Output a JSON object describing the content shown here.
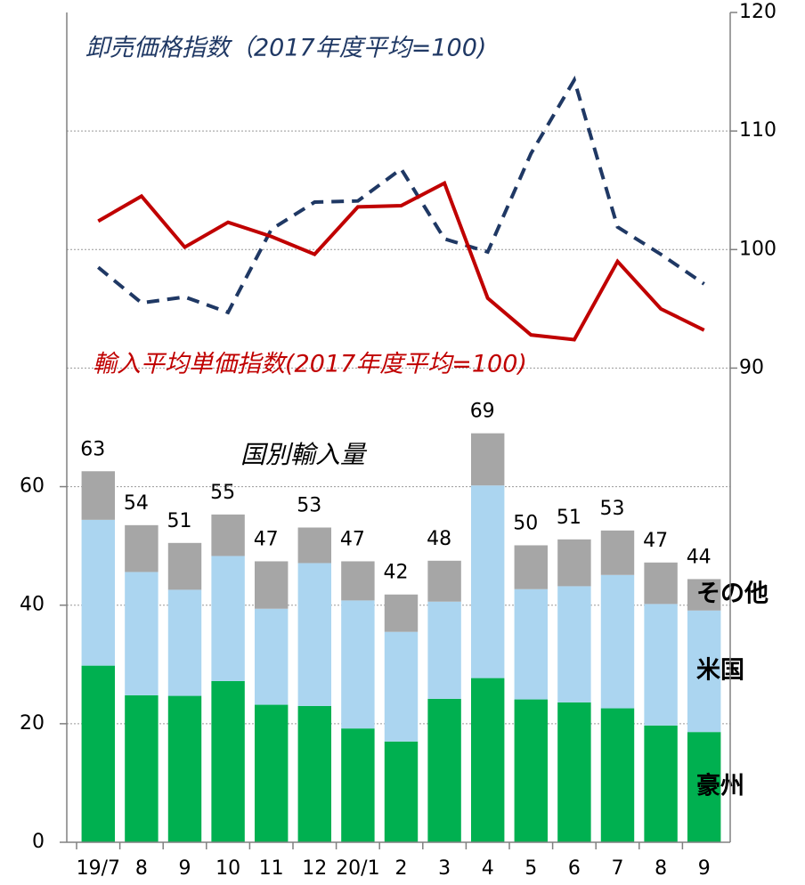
{
  "chart_data": {
    "type": "bar",
    "stacked": true,
    "title": "国別輸入量",
    "categories": [
      "19/7",
      "8",
      "9",
      "10",
      "11",
      "12",
      "20/1",
      "2",
      "3",
      "4",
      "5",
      "6",
      "7",
      "8",
      "9"
    ],
    "series": [
      {
        "name": "豪州",
        "color": "#00b050",
        "values": [
          29.8,
          24.8,
          24.7,
          27.2,
          23.2,
          23.0,
          19.2,
          17.0,
          24.2,
          27.7,
          24.1,
          23.6,
          22.6,
          19.7,
          18.6
        ]
      },
      {
        "name": "米国",
        "color": "#abd5f0",
        "values": [
          24.6,
          20.8,
          17.9,
          21.1,
          16.2,
          24.1,
          21.6,
          18.5,
          16.4,
          32.5,
          18.6,
          19.6,
          22.5,
          20.5,
          20.5
        ]
      },
      {
        "name": "その他",
        "color": "#a6a6a6",
        "values": [
          8.2,
          7.9,
          7.9,
          7.0,
          8.0,
          6.0,
          6.6,
          6.3,
          6.9,
          8.8,
          7.4,
          7.9,
          7.5,
          7.0,
          5.3
        ]
      },
      {
        "name": "卸売価格指数（2017年度平均=100)",
        "type": "line",
        "dashed": true,
        "axis": "y2",
        "color": "#1f3864",
        "values": [
          98.5,
          95.5,
          96.0,
          94.7,
          101.7,
          104.0,
          104.1,
          106.8,
          100.9,
          99.8,
          108.1,
          114.3,
          101.9,
          99.6,
          97.1
        ]
      },
      {
        "name": "輸入平均単価指数(2017年度平均=100)",
        "type": "line",
        "axis": "y2",
        "color": "#c00000",
        "values": [
          102.4,
          104.5,
          100.2,
          102.3,
          101.1,
          99.6,
          103.6,
          103.7,
          105.6,
          95.9,
          92.8,
          92.4,
          99.0,
          95.0,
          93.2
        ]
      }
    ],
    "totals": [
      63,
      54,
      51,
      55,
      47,
      53,
      47,
      42,
      48,
      69,
      50,
      51,
      53,
      47,
      44
    ],
    "ylim": [
      0,
      140
    ],
    "yticks": [
      0,
      20,
      40,
      60
    ],
    "y2lim": [
      50,
      120
    ],
    "y2ticks": [
      90,
      100,
      110,
      120
    ],
    "grid": true
  }
}
